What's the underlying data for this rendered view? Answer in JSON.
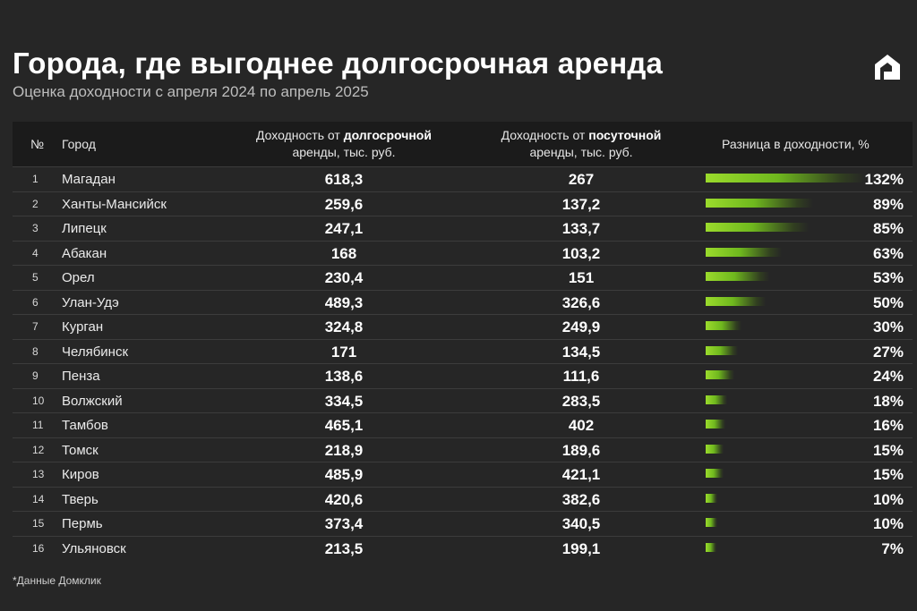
{
  "title": "Города, где выгоднее долгосрочная аренда",
  "subtitle": "Оценка доходности с апреля 2024 по апрель 2025",
  "header": {
    "num": "№",
    "city": "Город",
    "long_pre": "Доходность от ",
    "long_bold": "долгосрочной",
    "long_post": "аренды, тыс. руб.",
    "daily_pre": "Доходность от ",
    "daily_bold": "посуточной",
    "daily_post": "аренды, тыс. руб.",
    "diff": "Разница в доходности, %"
  },
  "footnote": "*Данные Домклик",
  "colors": {
    "background": "#262626",
    "bar": "#8fd42a",
    "header_bg": "#1b1b1b"
  },
  "logo_icon": "domclick-logo-icon",
  "chart_data": {
    "type": "table",
    "title": "Города, где выгоднее долгосрочная аренда",
    "columns": [
      "№",
      "Город",
      "Доходность от долгосрочной аренды, тыс. руб.",
      "Доходность от посуточной аренды, тыс. руб.",
      "Разница в доходности, %"
    ],
    "rows": [
      {
        "num": "1",
        "city": "Магадан",
        "long": "618,3",
        "daily": "267",
        "diff_label": "132%",
        "diff": 132
      },
      {
        "num": "2",
        "city": "Ханты-Мансийск",
        "long": "259,6",
        "daily": "137,2",
        "diff_label": "89%",
        "diff": 89
      },
      {
        "num": "3",
        "city": "Липецк",
        "long": "247,1",
        "daily": "133,7",
        "diff_label": "85%",
        "diff": 85
      },
      {
        "num": "4",
        "city": "Абакан",
        "long": "168",
        "daily": "103,2",
        "diff_label": "63%",
        "diff": 63
      },
      {
        "num": "5",
        "city": "Орел",
        "long": "230,4",
        "daily": "151",
        "diff_label": "53%",
        "diff": 53
      },
      {
        "num": "6",
        "city": "Улан-Удэ",
        "long": "489,3",
        "daily": "326,6",
        "diff_label": "50%",
        "diff": 50
      },
      {
        "num": "7",
        "city": "Курган",
        "long": "324,8",
        "daily": "249,9",
        "diff_label": "30%",
        "diff": 30
      },
      {
        "num": "8",
        "city": "Челябинск",
        "long": "171",
        "daily": "134,5",
        "diff_label": "27%",
        "diff": 27
      },
      {
        "num": "9",
        "city": "Пенза",
        "long": "138,6",
        "daily": "111,6",
        "diff_label": "24%",
        "diff": 24
      },
      {
        "num": "10",
        "city": "Волжский",
        "long": "334,5",
        "daily": "283,5",
        "diff_label": "18%",
        "diff": 18
      },
      {
        "num": "11",
        "city": "Тамбов",
        "long": "465,1",
        "daily": "402",
        "diff_label": "16%",
        "diff": 16
      },
      {
        "num": "12",
        "city": "Томск",
        "long": "218,9",
        "daily": "189,6",
        "diff_label": "15%",
        "diff": 15
      },
      {
        "num": "13",
        "city": "Киров",
        "long": "485,9",
        "daily": "421,1",
        "diff_label": "15%",
        "diff": 15
      },
      {
        "num": "14",
        "city": "Тверь",
        "long": "420,6",
        "daily": "382,6",
        "diff_label": "10%",
        "diff": 10
      },
      {
        "num": "15",
        "city": "Пермь",
        "long": "373,4",
        "daily": "340,5",
        "diff_label": "10%",
        "diff": 10
      },
      {
        "num": "16",
        "city": "Ульяновск",
        "long": "213,5",
        "daily": "199,1",
        "diff_label": "7%",
        "diff": 7
      }
    ],
    "diff_max": 132
  }
}
